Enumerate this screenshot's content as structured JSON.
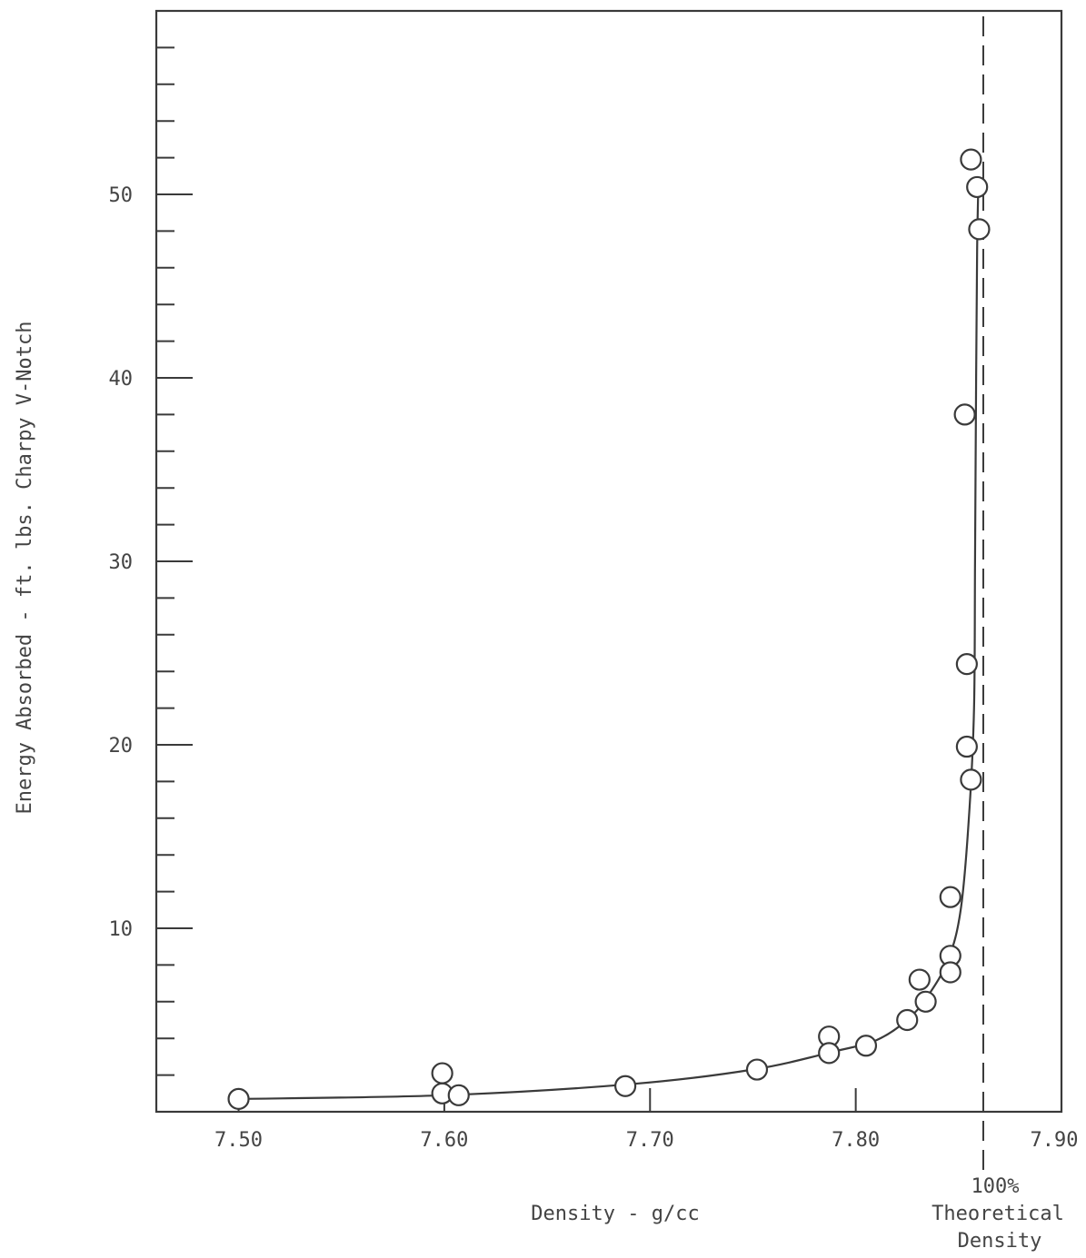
{
  "chart_data": {
    "type": "scatter",
    "title": "",
    "xlabel": "Density - g/cc",
    "ylabel": "Energy Absorbed - ft. lbs. Charpy V-Notch",
    "xlim": [
      7.46,
      7.9
    ],
    "ylim": [
      0,
      60
    ],
    "x_tick_labels": [
      "7.50",
      "7.60",
      "7.70",
      "7.80",
      "7.90"
    ],
    "x_tick_values": [
      7.5,
      7.6,
      7.7,
      7.8,
      7.9
    ],
    "y_tick_labels": [
      "10",
      "20",
      "30",
      "40",
      "50"
    ],
    "y_tick_values": [
      10,
      20,
      30,
      40,
      50
    ],
    "y_minor_step": 2,
    "grid": false,
    "reference_line": {
      "x": 7.862,
      "style": "dashed",
      "label_lines": [
        "100%",
        "Theoretical",
        "Density"
      ]
    },
    "series": [
      {
        "points": [
          [
            7.5,
            0.7
          ],
          [
            7.599,
            2.1
          ],
          [
            7.599,
            1.0
          ],
          [
            7.607,
            0.9
          ],
          [
            7.688,
            1.4
          ],
          [
            7.752,
            2.3
          ],
          [
            7.787,
            4.1
          ],
          [
            7.787,
            3.2
          ],
          [
            7.805,
            3.6
          ],
          [
            7.825,
            5.0
          ],
          [
            7.831,
            7.2
          ],
          [
            7.834,
            6.0
          ],
          [
            7.846,
            11.7
          ],
          [
            7.846,
            8.5
          ],
          [
            7.846,
            7.6
          ],
          [
            7.853,
            38.0
          ],
          [
            7.854,
            24.4
          ],
          [
            7.854,
            19.9
          ],
          [
            7.856,
            18.1
          ],
          [
            7.856,
            51.9
          ],
          [
            7.859,
            50.4
          ],
          [
            7.86,
            48.1
          ]
        ]
      }
    ],
    "fit_curve": [
      [
        7.5,
        0.7
      ],
      [
        7.6,
        0.9
      ],
      [
        7.69,
        1.5
      ],
      [
        7.75,
        2.3
      ],
      [
        7.79,
        3.3
      ],
      [
        7.81,
        3.9
      ],
      [
        7.825,
        5.0
      ],
      [
        7.835,
        6.3
      ],
      [
        7.845,
        8.3
      ],
      [
        7.851,
        11.0
      ],
      [
        7.855,
        16.0
      ],
      [
        7.8575,
        22.0
      ],
      [
        7.858,
        30.0
      ],
      [
        7.8585,
        40.0
      ],
      [
        7.859,
        47.0
      ],
      [
        7.8595,
        50.0
      ]
    ]
  }
}
